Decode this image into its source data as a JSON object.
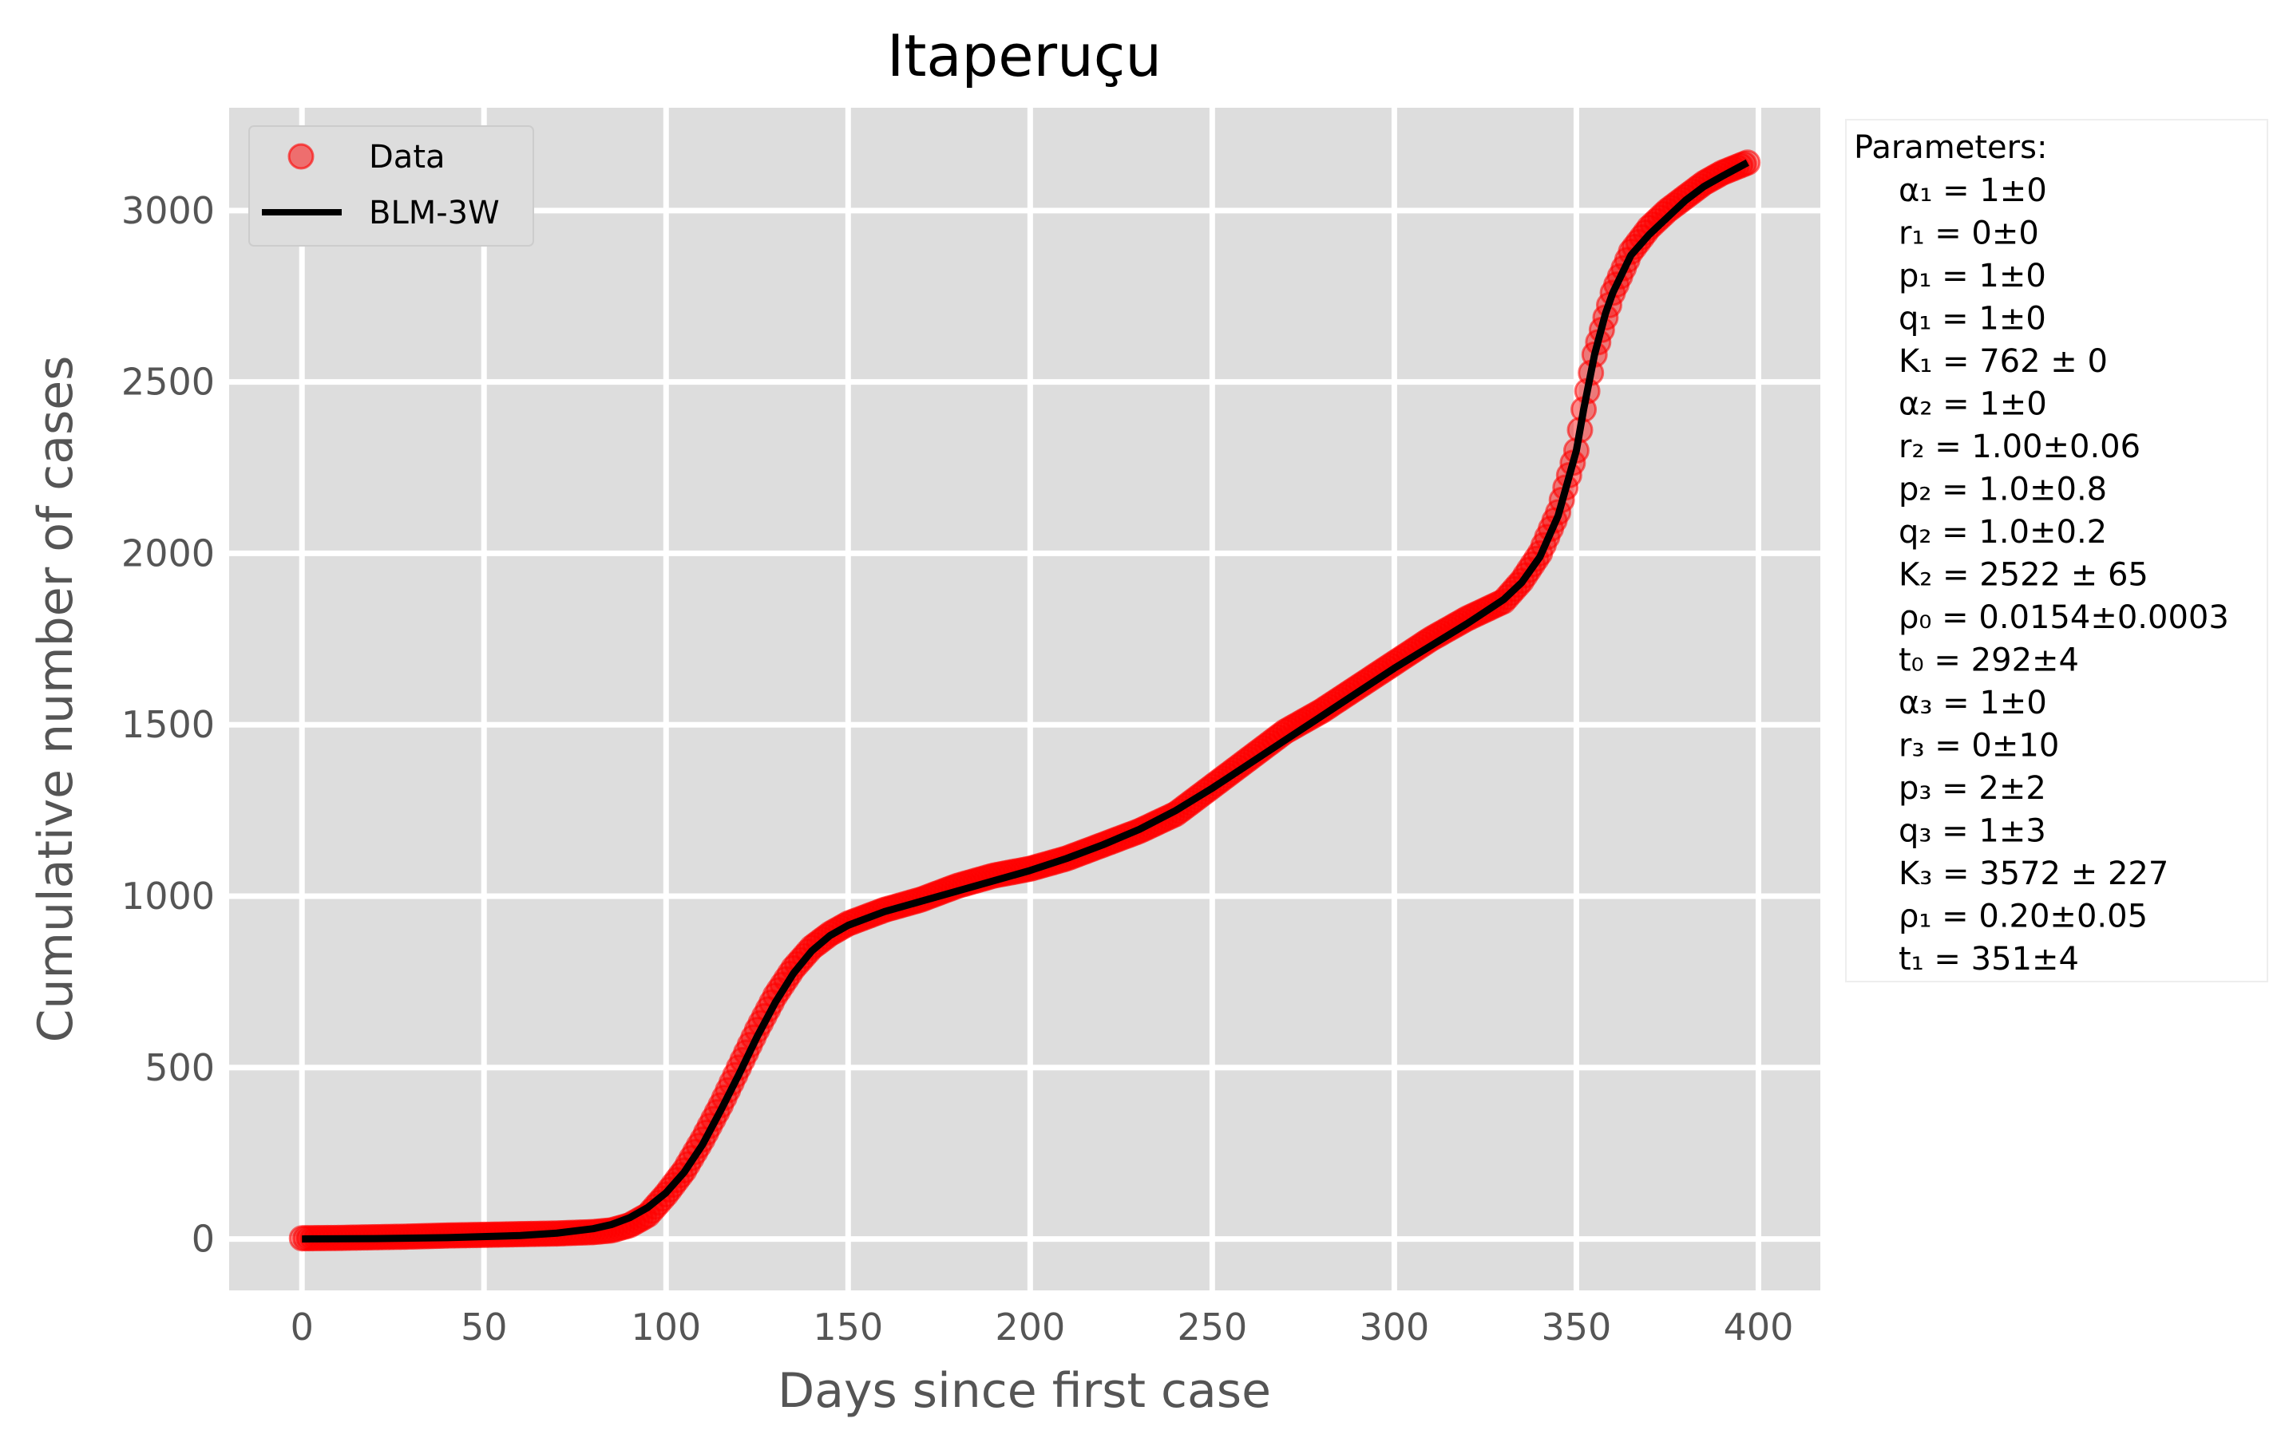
{
  "chart_data": {
    "type": "scatter",
    "title": "Itaperuçu",
    "xlabel": "Days since first case",
    "ylabel": "Cumulative  number of cases",
    "xlim": [
      -20,
      417
    ],
    "ylim": [
      -150,
      3300
    ],
    "x_ticks": [
      0,
      50,
      100,
      150,
      200,
      250,
      300,
      350,
      400
    ],
    "y_ticks": [
      0,
      500,
      1000,
      1500,
      2000,
      2500,
      3000
    ],
    "x_tick_labels": [
      "0",
      "50",
      "100",
      "150",
      "200",
      "250",
      "300",
      "350",
      "400"
    ],
    "y_tick_labels": [
      "0",
      "500",
      "1000",
      "1500",
      "2000",
      "2500",
      "3000"
    ],
    "grid": true,
    "legend_position": "upper-left",
    "colors": {
      "data": "#ff0000",
      "fit": "#000000",
      "background": "#dddddd",
      "grid": "#ffffff"
    },
    "series": [
      {
        "name": "Data",
        "kind": "scatter",
        "x": [
          0,
          10,
          20,
          30,
          40,
          50,
          60,
          70,
          80,
          85,
          90,
          95,
          100,
          105,
          110,
          115,
          120,
          125,
          130,
          135,
          140,
          145,
          150,
          155,
          160,
          170,
          180,
          190,
          200,
          210,
          220,
          230,
          240,
          250,
          260,
          270,
          280,
          290,
          300,
          310,
          320,
          330,
          335,
          340,
          345,
          350,
          352,
          355,
          360,
          365,
          370,
          375,
          380,
          385,
          390,
          397
        ],
        "y": [
          2,
          3,
          5,
          7,
          10,
          12,
          14,
          16,
          20,
          25,
          40,
          70,
          130,
          200,
          290,
          390,
          500,
          610,
          710,
          790,
          850,
          890,
          920,
          940,
          960,
          990,
          1030,
          1060,
          1080,
          1110,
          1150,
          1190,
          1240,
          1320,
          1400,
          1480,
          1540,
          1610,
          1680,
          1750,
          1810,
          1860,
          1920,
          2000,
          2120,
          2300,
          2420,
          2580,
          2760,
          2880,
          2950,
          3000,
          3040,
          3080,
          3110,
          3140
        ]
      },
      {
        "name": "BLM-3W",
        "kind": "line",
        "x": [
          0,
          20,
          40,
          60,
          70,
          80,
          85,
          90,
          95,
          100,
          105,
          110,
          115,
          120,
          125,
          130,
          135,
          140,
          145,
          150,
          160,
          170,
          180,
          190,
          200,
          210,
          220,
          230,
          240,
          250,
          260,
          270,
          280,
          290,
          300,
          310,
          320,
          330,
          335,
          340,
          345,
          350,
          352,
          355,
          358,
          360,
          365,
          370,
          375,
          380,
          385,
          390,
          397
        ],
        "y": [
          0,
          1,
          4,
          10,
          17,
          30,
          42,
          62,
          92,
          135,
          195,
          275,
          375,
          480,
          590,
          690,
          775,
          840,
          885,
          915,
          955,
          985,
          1015,
          1045,
          1075,
          1110,
          1150,
          1195,
          1250,
          1315,
          1385,
          1455,
          1525,
          1595,
          1665,
          1730,
          1795,
          1865,
          1915,
          1990,
          2110,
          2300,
          2420,
          2580,
          2700,
          2760,
          2870,
          2930,
          2980,
          3030,
          3070,
          3100,
          3140
        ]
      }
    ],
    "parameters_title": "Parameters:",
    "parameters": [
      "α₁ = 1±0",
      "r₁ = 0±0",
      "p₁ = 1±0",
      "q₁ = 1±0",
      "K₁ = 762 ± 0",
      "α₂ = 1±0",
      "r₂ = 1.00±0.06",
      "p₂ = 1.0±0.8",
      "q₂ = 1.0±0.2",
      "K₂ = 2522 ± 65",
      "ρ₀ = 0.0154±0.0003",
      "t₀ = 292±4",
      "α₃ = 1±0",
      "r₃ = 0±10",
      "p₃ = 2±2",
      "q₃ = 1±3",
      "K₃ = 3572 ± 227",
      "ρ₁ = 0.20±0.05",
      "t₁ = 351±4"
    ]
  }
}
